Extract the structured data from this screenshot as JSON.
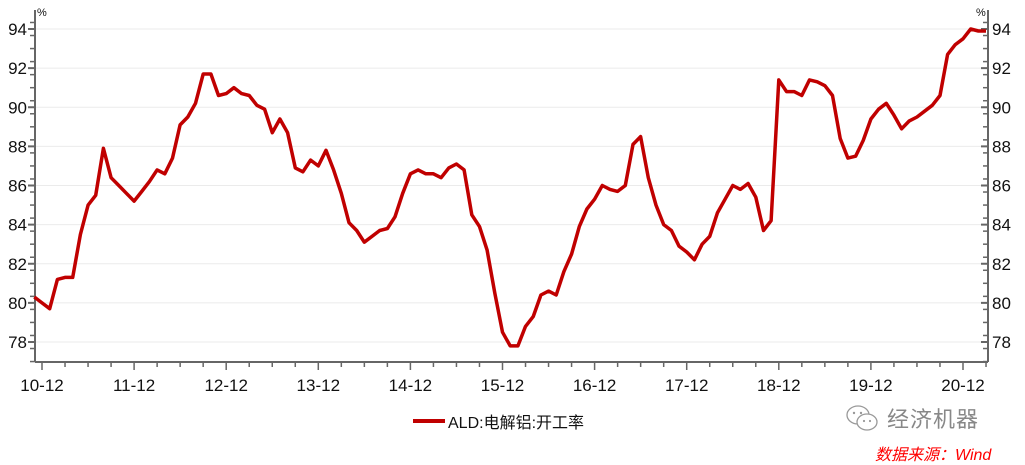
{
  "chart_data": {
    "type": "line",
    "title": "",
    "xlabel": "",
    "ylabel": "%",
    "y_unit_left": "%",
    "y_unit_right": "%",
    "ylim": [
      77,
      95
    ],
    "yticks": [
      78,
      80,
      82,
      84,
      86,
      88,
      90,
      92,
      94
    ],
    "xtick_labels": [
      "10-12",
      "11-12",
      "12-12",
      "13-12",
      "14-12",
      "15-12",
      "16-12",
      "17-12",
      "18-12",
      "19-12",
      "20-12"
    ],
    "grid": "horizontal",
    "legend_position": "bottom",
    "line_color": "#c00000",
    "start_month": "2010-11",
    "series": [
      {
        "name": "ALD:电解铝:开工率",
        "values": [
          80.3,
          80.0,
          79.7,
          81.2,
          81.3,
          81.3,
          83.5,
          85.0,
          85.5,
          87.9,
          86.4,
          86.0,
          85.6,
          85.2,
          85.7,
          86.2,
          86.8,
          86.6,
          87.4,
          89.1,
          89.5,
          90.2,
          91.7,
          91.7,
          90.6,
          90.7,
          91.0,
          90.7,
          90.6,
          90.1,
          89.9,
          88.7,
          89.4,
          88.7,
          86.9,
          86.7,
          87.3,
          87.0,
          87.8,
          86.8,
          85.6,
          84.1,
          83.7,
          83.1,
          83.4,
          83.7,
          83.8,
          84.4,
          85.6,
          86.6,
          86.8,
          86.6,
          86.6,
          86.4,
          86.9,
          87.1,
          86.8,
          84.5,
          83.9,
          82.7,
          80.5,
          78.5,
          77.8,
          77.8,
          78.8,
          79.3,
          80.4,
          80.6,
          80.4,
          81.6,
          82.5,
          83.9,
          84.8,
          85.3,
          86.0,
          85.8,
          85.7,
          86.0,
          88.1,
          88.5,
          86.4,
          85.0,
          84.0,
          83.7,
          82.9,
          82.6,
          82.2,
          83.0,
          83.4,
          84.6,
          85.3,
          86.0,
          85.8,
          86.1,
          85.4,
          83.7,
          84.2,
          91.4,
          90.8,
          90.8,
          90.6,
          91.4,
          91.3,
          91.1,
          90.6,
          88.4,
          87.4,
          87.5,
          88.3,
          89.4,
          89.9,
          90.2,
          89.6,
          88.9,
          89.3,
          89.5,
          89.8,
          90.1,
          90.6,
          92.7,
          93.2,
          93.5,
          94.0,
          93.9,
          93.9
        ]
      }
    ]
  },
  "watermark": {
    "icon": "wechat-icon",
    "text": "经济机器"
  },
  "source": "数据来源：Wind"
}
